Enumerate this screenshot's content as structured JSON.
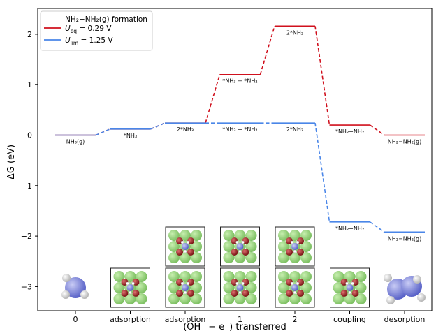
{
  "chart_data": {
    "type": "line",
    "ylabel": "ΔG (eV)",
    "xlabel": "(OH⁻ − e⁻) transferred",
    "categories": [
      "0",
      "adsorption",
      "adsorption",
      "1",
      "2",
      "coupling",
      "desorption"
    ],
    "ylim": [
      -3.5,
      2.5
    ],
    "yticks": [
      "2",
      "1",
      "0",
      "−1",
      "−2",
      "−3"
    ],
    "legend": {
      "placement": "top-left",
      "title": "NH₂−NH₂(g) formation",
      "entries": [
        {
          "prefix": "U",
          "sub": "eq",
          "suffix": " = 0.29 V",
          "color": "#d0101d"
        },
        {
          "prefix": "U",
          "sub": "lim",
          "suffix": " = 1.25 V",
          "color": "#4a86e8"
        }
      ]
    },
    "series": [
      {
        "color": "#d0101d",
        "values": [
          0.0,
          0.12,
          0.24,
          1.2,
          2.16,
          0.2,
          0.0
        ],
        "labels": [
          "NH₃(g)",
          "*NH₃",
          "2*NH₃",
          "*NH₃ + *NH₂",
          "2*NH₂",
          "*NH₂−NH₂",
          "NH₂−NH₂(g)"
        ]
      },
      {
        "color": "#4a86e8",
        "values": [
          0.0,
          0.12,
          0.24,
          0.24,
          0.24,
          -1.72,
          -1.92
        ],
        "labels": [
          "NH₃(g)",
          "*NH₃",
          "2*NH₃",
          "*NH₃ + *NH₂",
          "2*NH₂",
          "*NH₂−NH₂",
          "NH₂−NH₂(g)"
        ]
      }
    ]
  }
}
